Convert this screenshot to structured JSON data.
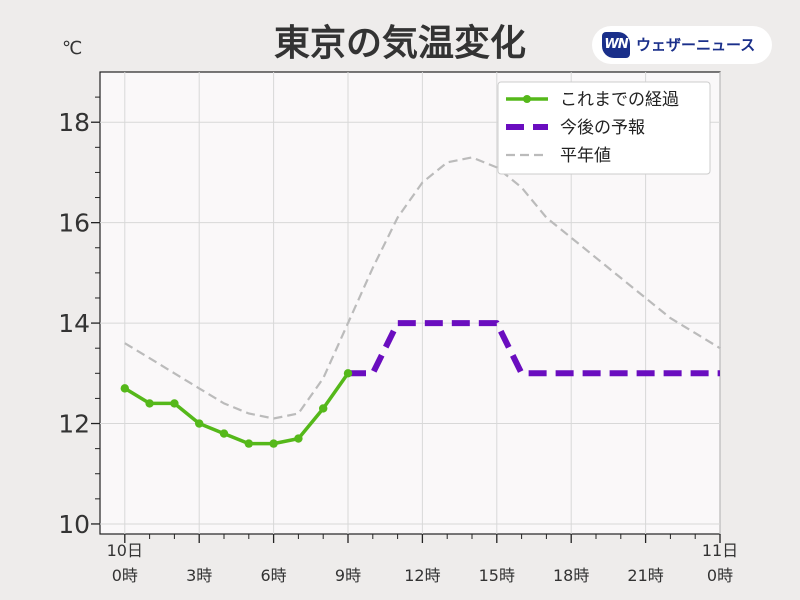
{
  "header": {
    "title": "東京の気温変化",
    "unit": "℃",
    "logo_mark": "WN",
    "logo_text": "ウェザーニュース"
  },
  "chart_data": {
    "type": "line",
    "title": "東京の気温変化",
    "ylabel": "℃",
    "xlabel": "",
    "xlim": [
      -1,
      24
    ],
    "ylim": [
      9.8,
      19
    ],
    "yticks": [
      10,
      12,
      14,
      16,
      18
    ],
    "xticks": [
      {
        "x": 0,
        "line1": "10日",
        "line2": "0時"
      },
      {
        "x": 3,
        "line1": "",
        "line2": "3時"
      },
      {
        "x": 6,
        "line1": "",
        "line2": "6時"
      },
      {
        "x": 9,
        "line1": "",
        "line2": "9時"
      },
      {
        "x": 12,
        "line1": "",
        "line2": "12時"
      },
      {
        "x": 15,
        "line1": "",
        "line2": "15時"
      },
      {
        "x": 18,
        "line1": "",
        "line2": "18時"
      },
      {
        "x": 21,
        "line1": "",
        "line2": "21時"
      },
      {
        "x": 24,
        "line1": "11日",
        "line2": "0時"
      }
    ],
    "grid": true,
    "legend_position": "top-right",
    "series": [
      {
        "name": "これまでの経過",
        "color": "#55b81a",
        "style": "solid-markers",
        "x": [
          0,
          1,
          2,
          3,
          4,
          5,
          6,
          7,
          8,
          9
        ],
        "y": [
          12.7,
          12.4,
          12.4,
          12.0,
          11.8,
          11.6,
          11.6,
          11.7,
          12.3,
          13.0
        ]
      },
      {
        "name": "今後の予報",
        "color": "#6a0dbf",
        "style": "dashed-thick",
        "x": [
          9,
          10,
          11,
          12,
          13,
          14,
          15,
          16,
          17,
          18,
          19,
          20,
          21,
          22,
          23,
          24
        ],
        "y": [
          13.0,
          13.0,
          14.0,
          14.0,
          14.0,
          14.0,
          14.0,
          13.0,
          13.0,
          13.0,
          13.0,
          13.0,
          13.0,
          13.0,
          13.0,
          13.0
        ]
      },
      {
        "name": "平年値",
        "color": "#bbbbbb",
        "style": "dashed-thin",
        "x": [
          0,
          1,
          2,
          3,
          4,
          5,
          6,
          7,
          8,
          9,
          10,
          11,
          12,
          13,
          14,
          15,
          16,
          17,
          18,
          19,
          20,
          21,
          22,
          23,
          24
        ],
        "y": [
          13.6,
          13.3,
          13.0,
          12.7,
          12.4,
          12.2,
          12.1,
          12.2,
          12.9,
          14.0,
          15.1,
          16.1,
          16.8,
          17.2,
          17.3,
          17.1,
          16.7,
          16.1,
          15.7,
          15.3,
          14.9,
          14.5,
          14.1,
          13.8,
          13.5
        ]
      }
    ]
  }
}
